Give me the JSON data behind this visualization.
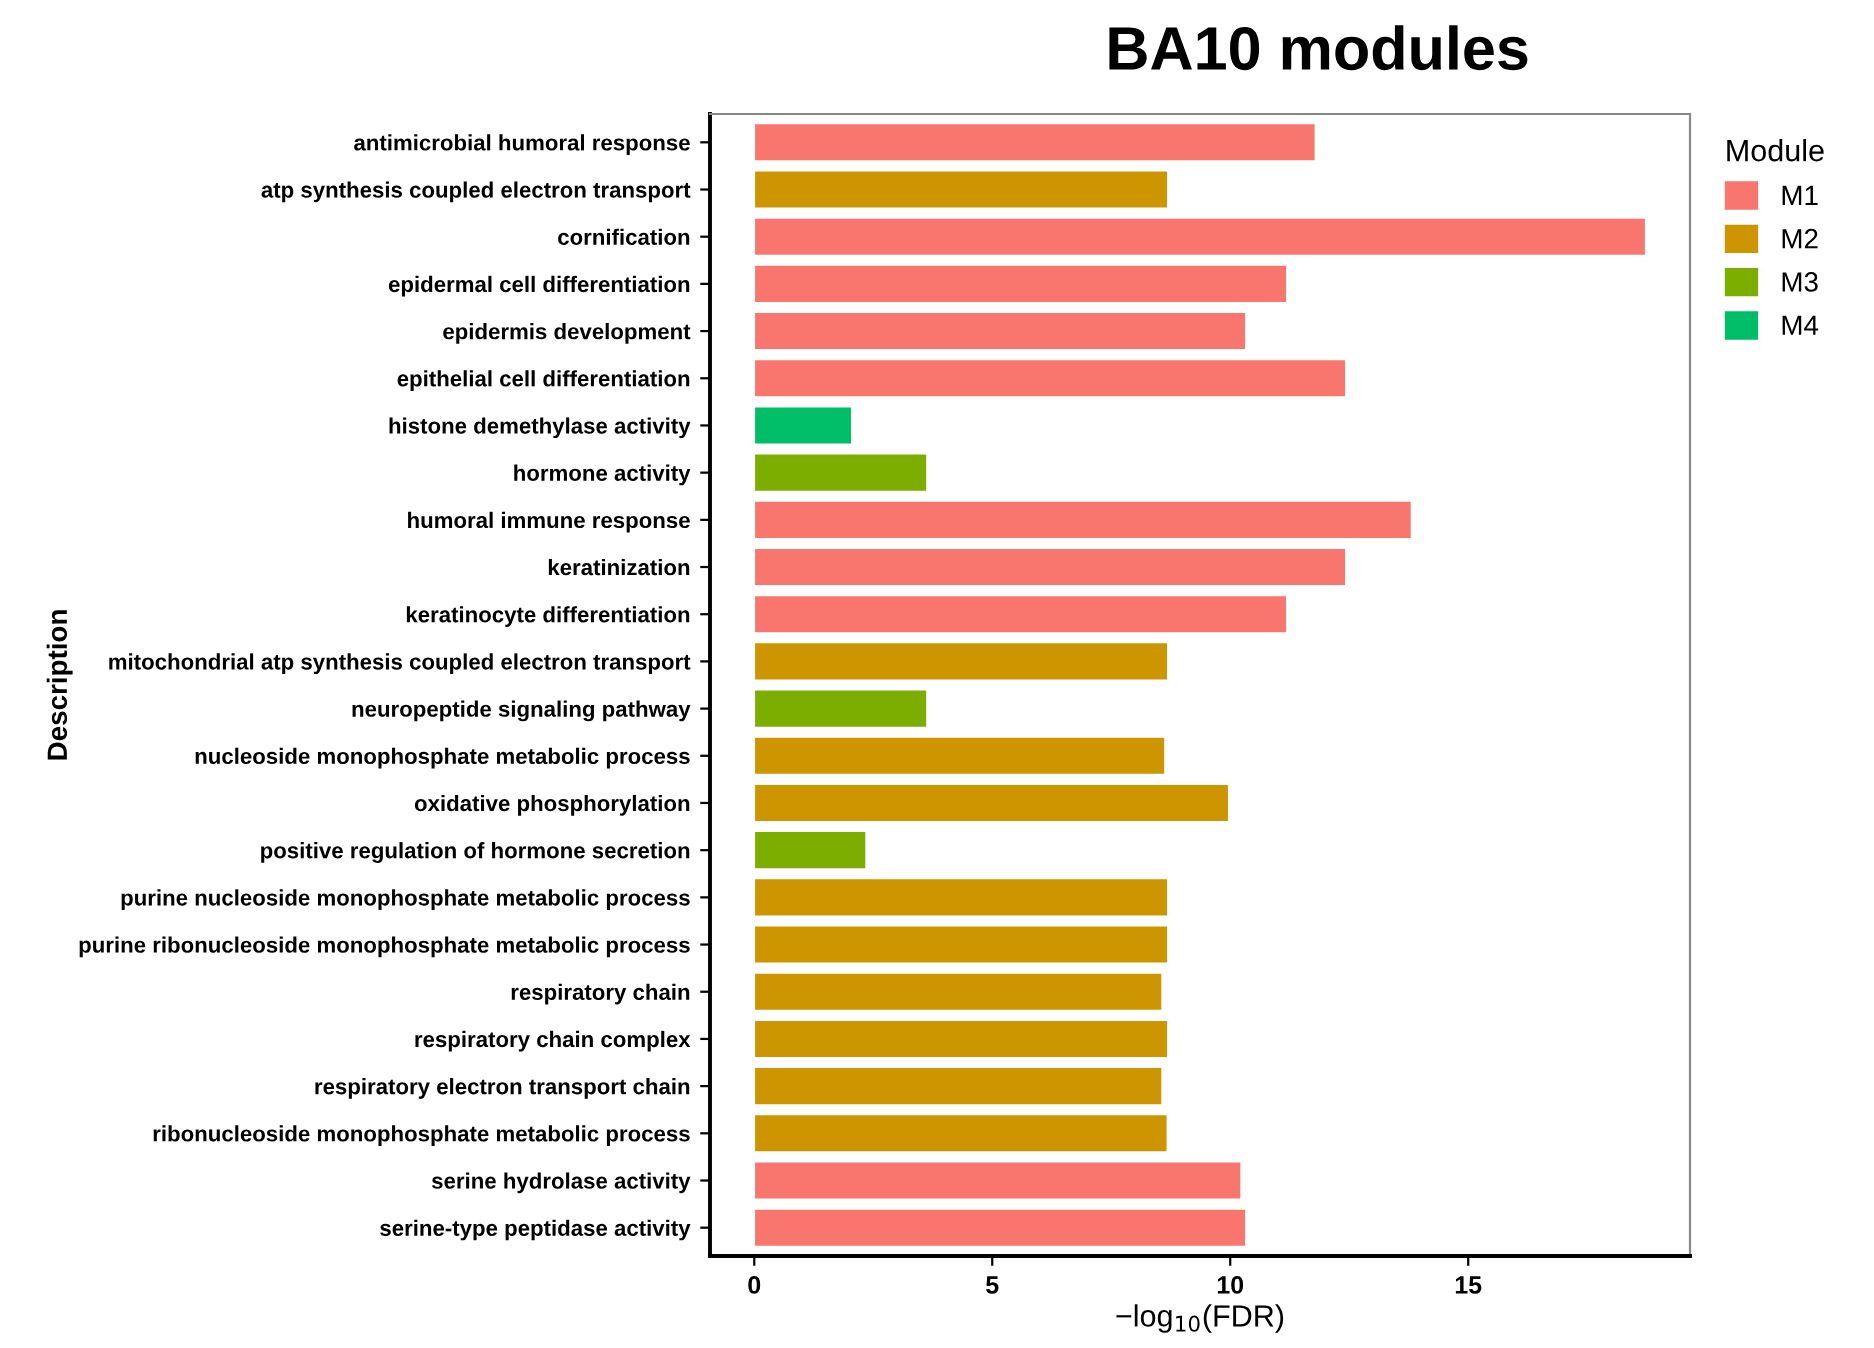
{
  "chart_data": {
    "type": "bar",
    "orientation": "horizontal",
    "title": "BA10 modules",
    "xlabel": "−log$_{10}$(FDR)",
    "ylabel": "Description",
    "legend_title": "Module",
    "legend": "top right",
    "grid": false,
    "categories": [
      "antimicrobial humoral response",
      "atp synthesis coupled electron transport",
      "cornification",
      "epidermal cell differentiation",
      "epidermis development",
      "epithelial cell differentiation",
      "histone demethylase activity",
      "hormone activity",
      "humoral immune response",
      "keratinization",
      "keratinocyte differentiation",
      "mitochondrial atp synthesis coupled electron transport",
      "neuropeptide signaling pathway",
      "nucleoside monophosphate metabolic process",
      "oxidative phosphorylation",
      "positive regulation of hormone secretion",
      "purine nucleoside monophosphate metabolic process",
      "purine ribonucleoside monophosphate metabolic process",
      "respiratory chain",
      "respiratory chain complex",
      "respiratory electron transport chain",
      "ribonucleoside monophosphate metabolic process",
      "serine hydrolase activity",
      "serine-type peptidase activity"
    ],
    "series": [
      {
        "name": "M1",
        "color": "#f8766d",
        "values": [
          11.79,
          null,
          18.73,
          11.19,
          10.33,
          12.43,
          null,
          null,
          13.81,
          12.43,
          11.19,
          null,
          null,
          null,
          null,
          null,
          null,
          null,
          null,
          null,
          null,
          null,
          10.23,
          10.33
        ]
      },
      {
        "name": "M2",
        "color": "#cd9600",
        "values": [
          null,
          8.69,
          null,
          null,
          null,
          null,
          null,
          null,
          null,
          null,
          null,
          8.69,
          null,
          8.63,
          9.97,
          null,
          8.69,
          8.69,
          8.57,
          8.69,
          8.57,
          8.68,
          null,
          null
        ]
      },
      {
        "name": "M3",
        "color": "#7cae00",
        "values": [
          null,
          null,
          null,
          null,
          null,
          null,
          null,
          3.63,
          null,
          null,
          null,
          null,
          3.63,
          null,
          null,
          2.35,
          null,
          null,
          null,
          null,
          null,
          null,
          null,
          null
        ]
      },
      {
        "name": "M4",
        "color": "#00be67",
        "values": [
          null,
          null,
          null,
          null,
          null,
          null,
          2.05,
          null,
          null,
          null,
          null,
          null,
          null,
          null,
          null,
          null,
          null,
          null,
          null,
          null,
          null,
          null,
          null,
          null
        ]
      }
    ],
    "xlim": [
      -0.93,
      19.66
    ],
    "xticks": [
      0,
      5,
      10,
      15
    ]
  }
}
